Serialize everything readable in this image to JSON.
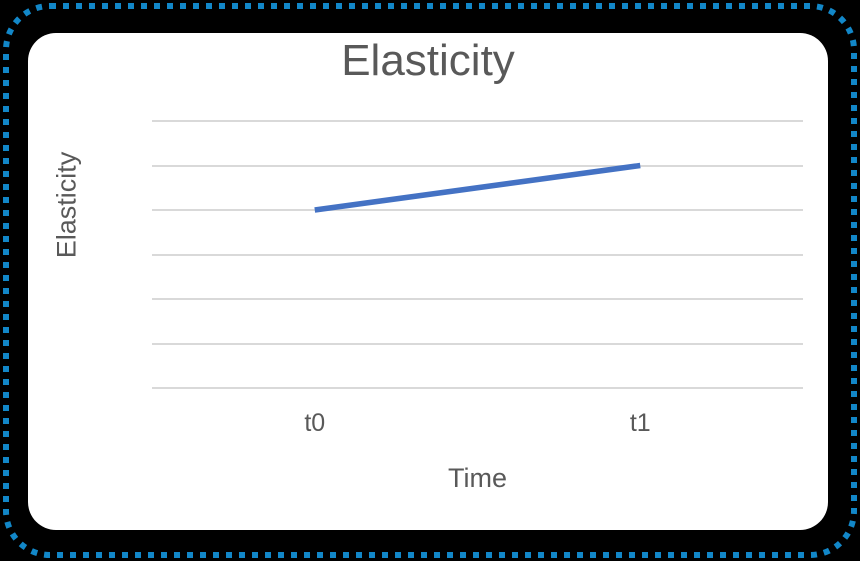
{
  "colors": {
    "background": "#000000",
    "card": "#FFFFFF",
    "dotted_border": "#1287C8",
    "line": "#4472C4",
    "gridline": "#D9D9D9",
    "text": "#595959"
  },
  "chart_data": {
    "type": "line",
    "title": "Elasticity",
    "xlabel": "Time",
    "ylabel": "Elasticity",
    "categories": [
      "t0",
      "t1"
    ],
    "series": [
      {
        "name": "Elasticity",
        "values": [
          4,
          5
        ],
        "color": "#4472C4"
      }
    ],
    "ylim": [
      0,
      6
    ],
    "y_step": 1,
    "grid": "horizontal-only",
    "y_tick_labels": "none",
    "legend": "none",
    "marker": "none"
  }
}
